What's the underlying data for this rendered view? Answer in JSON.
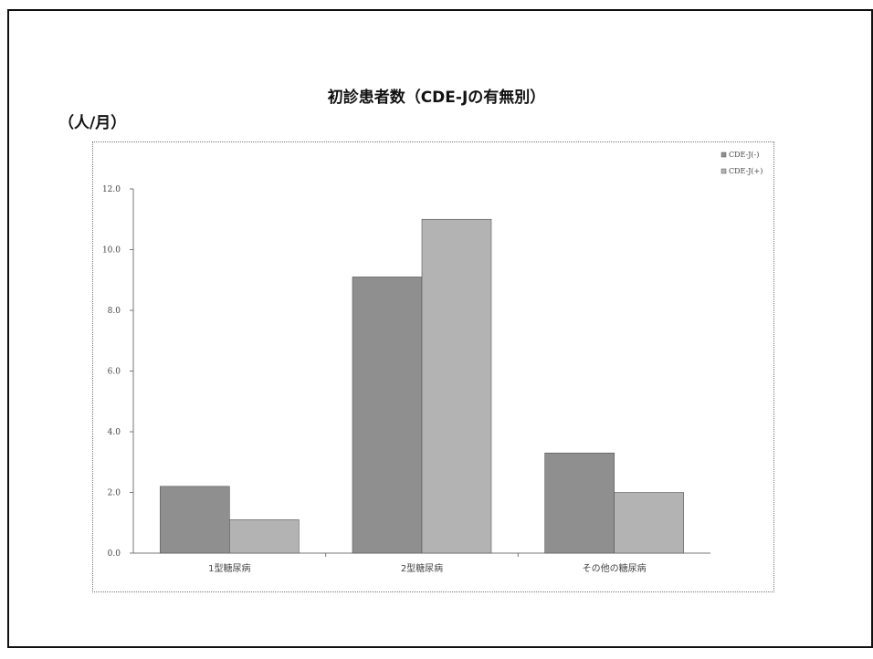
{
  "chart_data": {
    "type": "bar",
    "title": "初診患者数（CDE-Jの有無別）",
    "ylabel": "（人/月）",
    "xlabel": "",
    "categories": [
      "1型糖尿病",
      "2型糖尿病",
      "その他の糖尿病"
    ],
    "series": [
      {
        "name": "CDE-J(-)",
        "values": [
          2.2,
          9.1,
          3.3
        ],
        "color": "#8f8f8f"
      },
      {
        "name": "CDE-J(+)",
        "values": [
          1.1,
          11.0,
          2.0
        ],
        "color": "#b3b3b3"
      }
    ],
    "ylim": [
      0,
      12
    ],
    "yticks": [
      "0.0",
      "2.0",
      "4.0",
      "6.0",
      "8.0",
      "10.0",
      "12.0"
    ],
    "legend_position": "top-right",
    "grid": false
  }
}
